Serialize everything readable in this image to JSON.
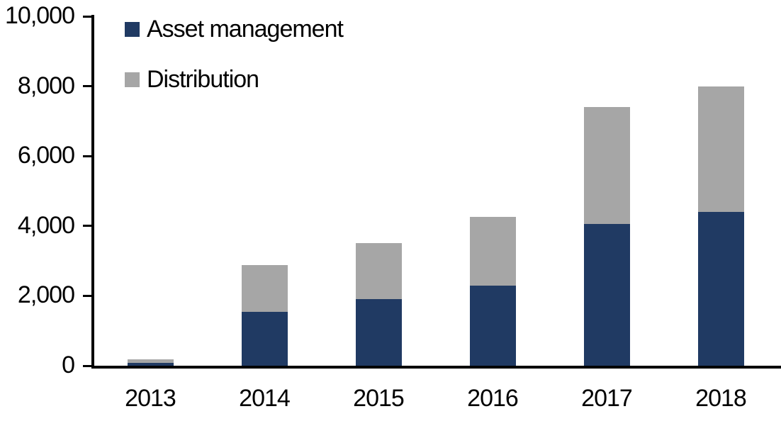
{
  "chart_data": {
    "type": "bar",
    "stacked": true,
    "title": "",
    "categories": [
      "2013",
      "2014",
      "2015",
      "2016",
      "2017",
      "2018"
    ],
    "series": [
      {
        "name": "Asset management",
        "color": "#203A63",
        "values": [
          85,
          1550,
          1900,
          2300,
          4050,
          4400
        ]
      },
      {
        "name": "Distribution",
        "color": "#A6A6A6",
        "values": [
          90,
          1330,
          1600,
          1950,
          3350,
          3600
        ]
      }
    ],
    "xlabel": "",
    "ylabel": "",
    "ylim": [
      0,
      10000
    ],
    "yticks": [
      0,
      2000,
      4000,
      6000,
      8000,
      10000
    ],
    "ytick_labels": [
      "0",
      "2,000",
      "4,000",
      "6,000",
      "8,000",
      "10,000"
    ],
    "grid": false,
    "legend_position": "top-left",
    "axis_color": "#000000",
    "text_color": "#000000",
    "background_color": "#FFFFFF"
  },
  "legend": {
    "items": [
      {
        "label": "Asset management",
        "color": "#203A63"
      },
      {
        "label": "Distribution",
        "color": "#A6A6A6"
      }
    ]
  }
}
